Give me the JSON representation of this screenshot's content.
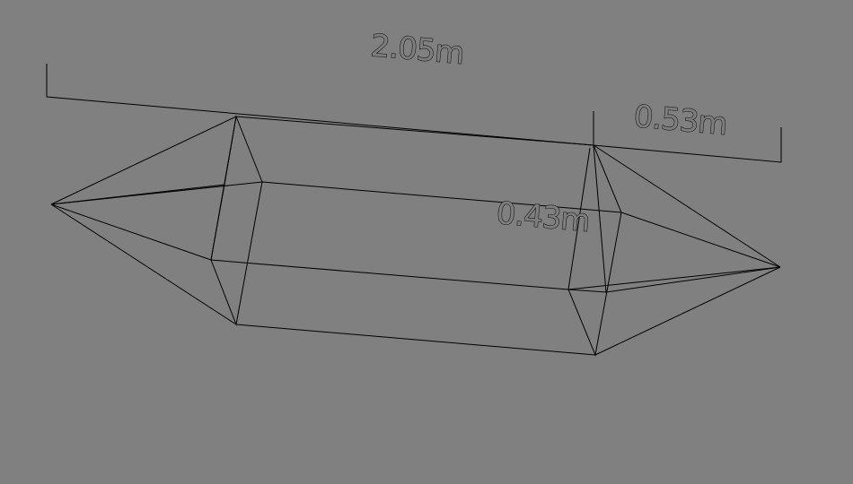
{
  "viewport": {
    "background": "#808080",
    "line_color": "#000000"
  },
  "dimensions": {
    "length_label": "2.05m",
    "end_length_label": "0.53m",
    "width_label": "0.43m"
  }
}
